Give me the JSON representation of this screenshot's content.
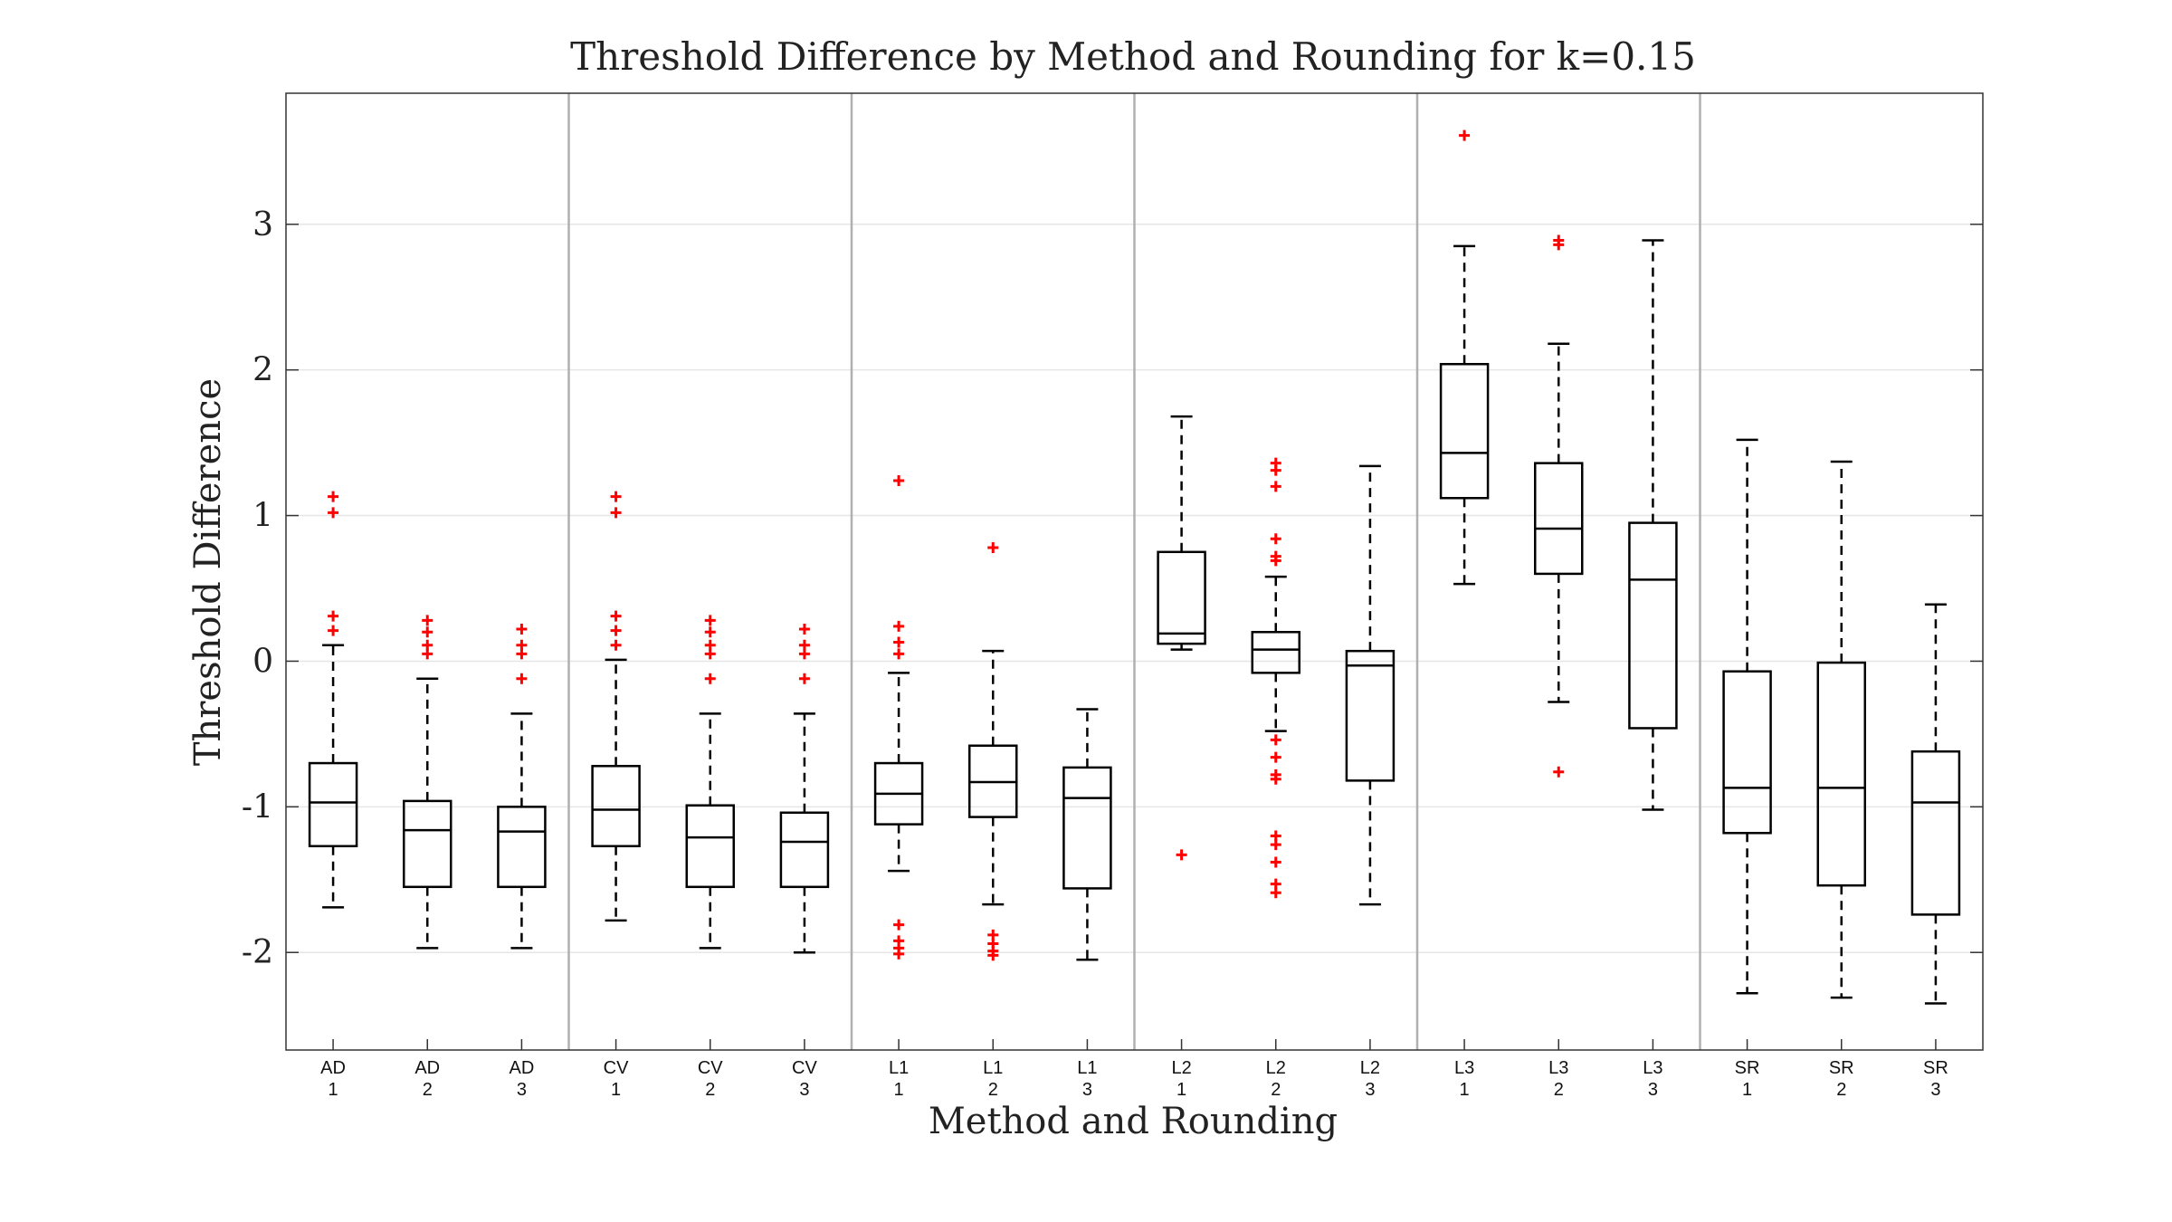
{
  "chart_data": {
    "type": "box",
    "title": "Threshold Difference by Method and Rounding for k=0.15",
    "xlabel": "Method and Rounding",
    "ylabel": "Threshold Difference",
    "ylim": [
      -2.67,
      3.9
    ],
    "yticks": [
      -2,
      -1,
      0,
      1,
      2,
      3
    ],
    "ytick_labels": [
      "-2",
      "-1",
      "0",
      "1",
      "2",
      "3"
    ],
    "grid": "horizontal",
    "outlier_color": "#ff0000",
    "box_color": "#000000",
    "group_separator_color": "#b0b0b0",
    "groups": [
      "AD",
      "CV",
      "L1",
      "L2",
      "L3",
      "SR"
    ],
    "boxes": [
      {
        "method": "AD",
        "rounding": "1",
        "whisker_low": -1.69,
        "q1": -1.27,
        "median": -0.97,
        "q3": -0.7,
        "whisker_high": 0.11,
        "outliers": [
          1.13,
          1.02,
          0.31,
          0.21
        ]
      },
      {
        "method": "AD",
        "rounding": "2",
        "whisker_low": -1.97,
        "q1": -1.55,
        "median": -1.16,
        "q3": -0.96,
        "whisker_high": -0.12,
        "outliers": [
          0.28,
          0.2,
          0.11,
          0.05
        ]
      },
      {
        "method": "AD",
        "rounding": "3",
        "whisker_low": -1.97,
        "q1": -1.55,
        "median": -1.17,
        "q3": -1.0,
        "whisker_high": -0.36,
        "outliers": [
          0.22,
          0.11,
          0.05,
          -0.12
        ]
      },
      {
        "method": "CV",
        "rounding": "1",
        "whisker_low": -1.78,
        "q1": -1.27,
        "median": -1.02,
        "q3": -0.72,
        "whisker_high": 0.01,
        "outliers": [
          1.13,
          1.02,
          0.31,
          0.21,
          0.11
        ]
      },
      {
        "method": "CV",
        "rounding": "2",
        "whisker_low": -1.97,
        "q1": -1.55,
        "median": -1.21,
        "q3": -0.99,
        "whisker_high": -0.36,
        "outliers": [
          0.28,
          0.2,
          0.11,
          0.05,
          -0.12
        ]
      },
      {
        "method": "CV",
        "rounding": "3",
        "whisker_low": -2.0,
        "q1": -1.55,
        "median": -1.24,
        "q3": -1.04,
        "whisker_high": -0.36,
        "outliers": [
          0.22,
          0.11,
          0.05,
          -0.12
        ]
      },
      {
        "method": "L1",
        "rounding": "1",
        "whisker_low": -1.44,
        "q1": -1.12,
        "median": -0.91,
        "q3": -0.7,
        "whisker_high": -0.08,
        "outliers": [
          1.24,
          0.24,
          0.13,
          0.05,
          -1.81,
          -1.92,
          -1.97,
          -2.01
        ]
      },
      {
        "method": "L1",
        "rounding": "2",
        "whisker_low": -1.67,
        "q1": -1.07,
        "median": -0.83,
        "q3": -0.58,
        "whisker_high": 0.07,
        "outliers": [
          0.78,
          -1.88,
          -1.94,
          -1.99,
          -2.02
        ]
      },
      {
        "method": "L1",
        "rounding": "3",
        "whisker_low": -2.05,
        "q1": -1.56,
        "median": -0.94,
        "q3": -0.73,
        "whisker_high": -0.33,
        "outliers": []
      },
      {
        "method": "L2",
        "rounding": "1",
        "whisker_low": 0.08,
        "q1": 0.12,
        "median": 0.19,
        "q3": 0.75,
        "whisker_high": 1.68,
        "outliers": [
          -1.33
        ]
      },
      {
        "method": "L2",
        "rounding": "2",
        "whisker_low": -0.48,
        "q1": -0.08,
        "median": 0.08,
        "q3": 0.2,
        "whisker_high": 0.58,
        "outliers": [
          1.36,
          1.31,
          1.2,
          0.84,
          0.72,
          0.69,
          -0.54,
          -0.66,
          -0.78,
          -0.81,
          -1.2,
          -1.26,
          -1.38,
          -1.53,
          -1.59
        ]
      },
      {
        "method": "L2",
        "rounding": "3",
        "whisker_low": -1.67,
        "q1": -0.82,
        "median": -0.03,
        "q3": 0.07,
        "whisker_high": 1.34,
        "outliers": []
      },
      {
        "method": "L3",
        "rounding": "1",
        "whisker_low": 0.53,
        "q1": 1.12,
        "median": 1.43,
        "q3": 2.04,
        "whisker_high": 2.85,
        "outliers": [
          3.61
        ]
      },
      {
        "method": "L3",
        "rounding": "2",
        "whisker_low": -0.28,
        "q1": 0.6,
        "median": 0.91,
        "q3": 1.36,
        "whisker_high": 2.18,
        "outliers": [
          2.89,
          2.86,
          -0.76
        ]
      },
      {
        "method": "L3",
        "rounding": "3",
        "whisker_low": -1.02,
        "q1": -0.46,
        "median": 0.56,
        "q3": 0.95,
        "whisker_high": 2.89,
        "outliers": []
      },
      {
        "method": "SR",
        "rounding": "1",
        "whisker_low": -2.28,
        "q1": -1.18,
        "median": -0.87,
        "q3": -0.07,
        "whisker_high": 1.52,
        "outliers": []
      },
      {
        "method": "SR",
        "rounding": "2",
        "whisker_low": -2.31,
        "q1": -1.54,
        "median": -0.87,
        "q3": -0.01,
        "whisker_high": 1.37,
        "outliers": []
      },
      {
        "method": "SR",
        "rounding": "3",
        "whisker_low": -2.35,
        "q1": -1.74,
        "median": -0.97,
        "q3": -0.62,
        "whisker_high": 0.39,
        "outliers": []
      }
    ]
  }
}
